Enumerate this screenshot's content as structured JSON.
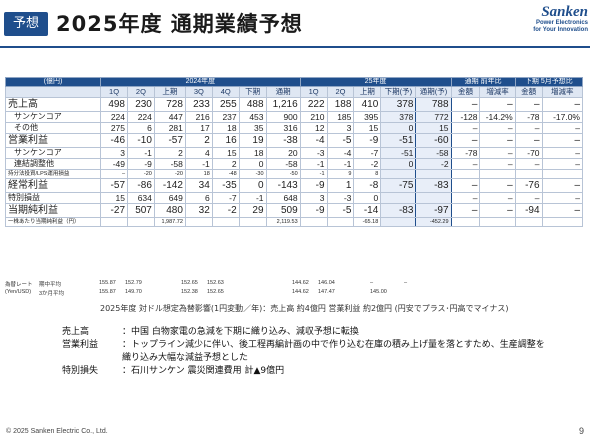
{
  "header": {
    "tag": "予想",
    "title": "2025年度  通期業績予想",
    "logo_mark": "Sanken",
    "logo_tag_1": "Power Electronics",
    "logo_tag_2": "for Your Innovation"
  },
  "table": {
    "unit": "(億円)",
    "group_2024": "2024年度",
    "group_2025": "25年度",
    "group_yoy": "通期 前年比",
    "group_h2": "下期 5月予想比",
    "sub_headers": [
      "1Q",
      "2Q",
      "上期",
      "3Q",
      "4Q",
      "下期",
      "通期",
      "1Q",
      "2Q",
      "上期",
      "下期(予)",
      "通期(予)",
      "金額",
      "増減率",
      "金額",
      "増減率"
    ],
    "rows": [
      {
        "label": "売上高",
        "cells": [
          "498",
          "230",
          "728",
          "233",
          "255",
          "488",
          "1,216",
          "222",
          "188",
          "410",
          "378",
          "788",
          "–",
          "–",
          "–",
          "–"
        ]
      },
      {
        "label": "サンケンコア",
        "cells": [
          "224",
          "224",
          "447",
          "216",
          "237",
          "453",
          "900",
          "210",
          "185",
          "395",
          "378",
          "772",
          "-128",
          "-14.2%",
          "-78",
          "-17.0%"
        ]
      },
      {
        "label": "その他",
        "cells": [
          "275",
          "6",
          "281",
          "17",
          "18",
          "35",
          "316",
          "12",
          "3",
          "15",
          "0",
          "15",
          "–",
          "–",
          "–",
          "–"
        ]
      },
      {
        "label": "営業利益",
        "cells": [
          "-46",
          "-10",
          "-57",
          "2",
          "16",
          "19",
          "-38",
          "-4",
          "-5",
          "-9",
          "-51",
          "-60",
          "–",
          "–",
          "–",
          "–"
        ]
      },
      {
        "label": "サンケンコア",
        "cells": [
          "3",
          "-1",
          "2",
          "4",
          "15",
          "18",
          "20",
          "-3",
          "-4",
          "-7",
          "-51",
          "-58",
          "-78",
          "–",
          "-70",
          "–"
        ]
      },
      {
        "label": "連結調整他",
        "cells": [
          "-49",
          "-9",
          "-58",
          "-1",
          "2",
          "0",
          "-58",
          "-1",
          "-1",
          "-2",
          "0",
          "-2",
          "–",
          "–",
          "–",
          "–"
        ]
      },
      {
        "label": "持分法投資/LPS運用損益",
        "cells": [
          "–",
          "-20",
          "-20",
          "18",
          "-48",
          "-30",
          "-50",
          "-1",
          "9",
          "8",
          "",
          "",
          "",
          "",
          "",
          ""
        ]
      },
      {
        "label": "経常利益",
        "cells": [
          "-57",
          "-86",
          "-142",
          "34",
          "-35",
          "0",
          "-143",
          "-9",
          "1",
          "-8",
          "-75",
          "-83",
          "–",
          "–",
          "-76",
          "–"
        ]
      },
      {
        "label": "特別損益",
        "cells": [
          "15",
          "634",
          "649",
          "6",
          "-7",
          "-1",
          "648",
          "3",
          "-3",
          "0",
          "",
          "",
          "–",
          "–",
          "–",
          "–"
        ]
      },
      {
        "label": "当期純利益",
        "cells": [
          "-27",
          "507",
          "480",
          "32",
          "-2",
          "29",
          "509",
          "-9",
          "-5",
          "-14",
          "-83",
          "-97",
          "–",
          "–",
          "-94",
          "–"
        ]
      },
      {
        "label": "一株あたり当期純利益（円）",
        "cells": [
          "",
          "",
          "1,987.72",
          "",
          "",
          "",
          "2,119.53",
          "",
          "",
          "-65.18",
          "",
          "-452.29",
          "",
          "",
          "",
          ""
        ]
      }
    ]
  },
  "rates": {
    "label_main": "為替レート",
    "label_sub": "(Yen/USD)",
    "row1_name": "期中平均",
    "row2_name": "3か月平均",
    "row1": [
      "155.87",
      "152.79",
      "",
      "152.65",
      "152.63",
      "",
      "",
      "144.62",
      "146.04",
      "",
      "–",
      "–"
    ],
    "row2": [
      "155.87",
      "149.70",
      "",
      "152.38",
      "152.65",
      "",
      "",
      "144.62",
      "147.47",
      "",
      "145.00",
      ""
    ]
  },
  "note": "2025年度 対ドル想定為替影響(1円変動／年)：売上高 約4億円  営業利益 約2億円  (円安でプラス･円高でマイナス)",
  "descriptions": [
    {
      "key": "売上高",
      "value": "：中国 白物家電の急減を下期に織り込み、減収予想に転換"
    },
    {
      "key": "営業利益",
      "value": "：トップライン減少に伴い、後工程再編計画の中で作り込む在庫の積み上げ量を落とすため、生産調整を"
    },
    {
      "key": "",
      "value": "  織り込み大幅な減益予想とした"
    },
    {
      "key": "特別損失",
      "value": "：石川サンケン 震災関連費用  計▲9億円"
    }
  ],
  "footer": "© 2025  Sanken Electric Co., Ltd.",
  "page_number": "9"
}
